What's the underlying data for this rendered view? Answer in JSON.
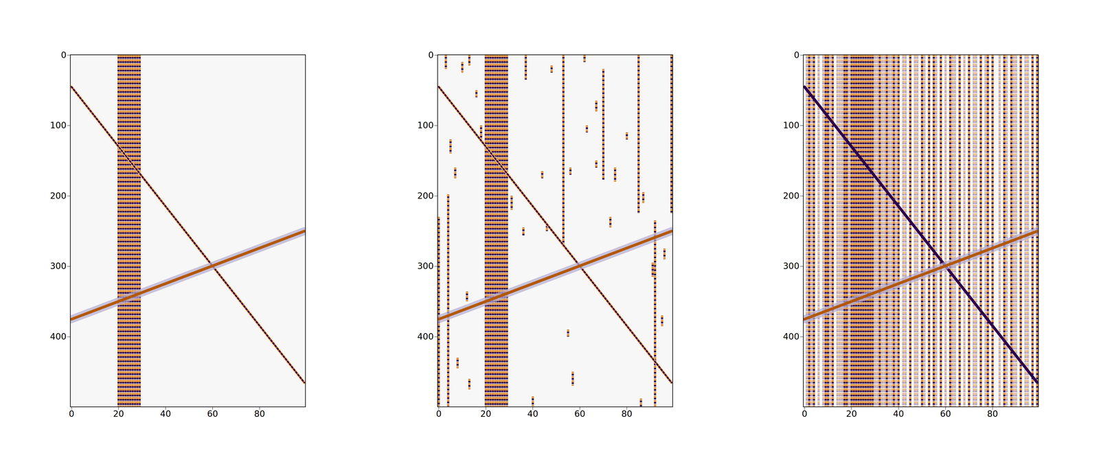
{
  "chart_data": [
    {
      "type": "seismic",
      "xlim": [
        -0.5,
        99.5
      ],
      "ylim": [
        -0.5,
        499.5
      ],
      "xticks": [
        0,
        20,
        40,
        60,
        80
      ],
      "yticks": [
        0,
        100,
        200,
        300,
        400
      ],
      "colors": [
        "#b35806",
        "#2d004b",
        "#fdb863"
      ],
      "events": [
        {
          "x": [
            0,
            99
          ],
          "y": [
            45,
            465
          ],
          "color": "#fdb863"
        },
        {
          "x": [
            0,
            99
          ],
          "y": [
            375,
            250
          ],
          "color": "#b35806"
        }
      ],
      "traces": [
        {
          "x": 20,
          "y0": 0,
          "y1": 499
        },
        {
          "x": 21,
          "y0": 0,
          "y1": 499
        },
        {
          "x": 22,
          "y0": 0,
          "y1": 499
        },
        {
          "x": 23,
          "y0": 0,
          "y1": 499
        },
        {
          "x": 24,
          "y0": 0,
          "y1": 499
        },
        {
          "x": 25,
          "y0": 0,
          "y1": 499
        },
        {
          "x": 26,
          "y0": 0,
          "y1": 499
        },
        {
          "x": 27,
          "y0": 0,
          "y1": 499
        },
        {
          "x": 28,
          "y0": 0,
          "y1": 499
        },
        {
          "x": 29,
          "y0": 0,
          "y1": 499
        }
      ],
      "faint_traces": []
    },
    {
      "type": "seismic",
      "xlim": [
        -0.5,
        99.5
      ],
      "ylim": [
        -0.5,
        499.5
      ],
      "xticks": [
        0,
        20,
        40,
        60,
        80
      ],
      "yticks": [
        0,
        100,
        200,
        300,
        400
      ],
      "colors": [
        "#b35806",
        "#2d004b",
        "#fdb863"
      ],
      "events": [
        {
          "x": [
            0,
            99
          ],
          "y": [
            45,
            465
          ],
          "color": "#fdb863"
        },
        {
          "x": [
            0,
            99
          ],
          "y": [
            375,
            250
          ],
          "color": "#b35806"
        }
      ],
      "traces": [
        {
          "x": 20,
          "y0": 0,
          "y1": 499
        },
        {
          "x": 21,
          "y0": 0,
          "y1": 499
        },
        {
          "x": 22,
          "y0": 0,
          "y1": 499
        },
        {
          "x": 23,
          "y0": 0,
          "y1": 499
        },
        {
          "x": 24,
          "y0": 0,
          "y1": 499
        },
        {
          "x": 25,
          "y0": 0,
          "y1": 499
        },
        {
          "x": 26,
          "y0": 0,
          "y1": 499
        },
        {
          "x": 27,
          "y0": 0,
          "y1": 499
        },
        {
          "x": 28,
          "y0": 0,
          "y1": 499
        },
        {
          "x": 29,
          "y0": 0,
          "y1": 499
        },
        {
          "x": 0,
          "y0": 230,
          "y1": 499
        },
        {
          "x": 4,
          "y0": 198,
          "y1": 499
        },
        {
          "x": 3,
          "y0": 0,
          "y1": 20
        },
        {
          "x": 5,
          "y0": 120,
          "y1": 140
        },
        {
          "x": 7,
          "y0": 160,
          "y1": 175
        },
        {
          "x": 10,
          "y0": 10,
          "y1": 25
        },
        {
          "x": 13,
          "y0": 0,
          "y1": 15
        },
        {
          "x": 16,
          "y0": 50,
          "y1": 60
        },
        {
          "x": 18,
          "y0": 100,
          "y1": 120
        },
        {
          "x": 12,
          "y0": 336,
          "y1": 350
        },
        {
          "x": 8,
          "y0": 430,
          "y1": 445
        },
        {
          "x": 13,
          "y0": 460,
          "y1": 475
        },
        {
          "x": 31,
          "y0": 200,
          "y1": 220
        },
        {
          "x": 36,
          "y0": 245,
          "y1": 257
        },
        {
          "x": 37,
          "y0": 0,
          "y1": 35
        },
        {
          "x": 40,
          "y0": 485,
          "y1": 499
        },
        {
          "x": 44,
          "y0": 165,
          "y1": 175
        },
        {
          "x": 46,
          "y0": 240,
          "y1": 250
        },
        {
          "x": 48,
          "y0": 15,
          "y1": 25
        },
        {
          "x": 53,
          "y0": 0,
          "y1": 272
        },
        {
          "x": 56,
          "y0": 160,
          "y1": 170
        },
        {
          "x": 55,
          "y0": 390,
          "y1": 400
        },
        {
          "x": 57,
          "y0": 450,
          "y1": 470
        },
        {
          "x": 62,
          "y0": 0,
          "y1": 10
        },
        {
          "x": 63,
          "y0": 100,
          "y1": 110
        },
        {
          "x": 67,
          "y0": 65,
          "y1": 80
        },
        {
          "x": 67,
          "y0": 150,
          "y1": 160
        },
        {
          "x": 70,
          "y0": 20,
          "y1": 177
        },
        {
          "x": 73,
          "y0": 230,
          "y1": 245
        },
        {
          "x": 75,
          "y0": 160,
          "y1": 180
        },
        {
          "x": 80,
          "y0": 110,
          "y1": 120
        },
        {
          "x": 85,
          "y0": 0,
          "y1": 225
        },
        {
          "x": 87,
          "y0": 195,
          "y1": 210
        },
        {
          "x": 91,
          "y0": 295,
          "y1": 315
        },
        {
          "x": 92,
          "y0": 235,
          "y1": 499
        },
        {
          "x": 95,
          "y0": 370,
          "y1": 385
        },
        {
          "x": 96,
          "y0": 275,
          "y1": 290
        },
        {
          "x": 99,
          "y0": 0,
          "y1": 225
        },
        {
          "x": 86,
          "y0": 488,
          "y1": 499
        }
      ],
      "faint_traces": []
    },
    {
      "type": "seismic",
      "xlim": [
        -0.5,
        99.5
      ],
      "ylim": [
        -0.5,
        499.5
      ],
      "xticks": [
        0,
        20,
        40,
        60,
        80
      ],
      "yticks": [
        0,
        100,
        200,
        300,
        400
      ],
      "colors": [
        "#b35806",
        "#2d004b",
        "#fdb863"
      ],
      "events": [
        {
          "x": [
            0,
            99
          ],
          "y": [
            45,
            465
          ],
          "color": "#2d004b"
        },
        {
          "x": [
            0,
            99
          ],
          "y": [
            375,
            250
          ],
          "color": "#b35806"
        }
      ],
      "traces": [
        {
          "x": 20,
          "y0": 0,
          "y1": 499
        },
        {
          "x": 21,
          "y0": 0,
          "y1": 499
        },
        {
          "x": 22,
          "y0": 0,
          "y1": 499
        },
        {
          "x": 23,
          "y0": 0,
          "y1": 499
        },
        {
          "x": 24,
          "y0": 0,
          "y1": 499
        },
        {
          "x": 25,
          "y0": 0,
          "y1": 499
        },
        {
          "x": 26,
          "y0": 0,
          "y1": 499
        },
        {
          "x": 27,
          "y0": 0,
          "y1": 499
        },
        {
          "x": 28,
          "y0": 0,
          "y1": 499
        },
        {
          "x": 29,
          "y0": 0,
          "y1": 499
        },
        {
          "x": 2,
          "y0": 0,
          "y1": 499
        },
        {
          "x": 4,
          "y0": 0,
          "y1": 499
        },
        {
          "x": 9,
          "y0": 0,
          "y1": 499
        },
        {
          "x": 10,
          "y0": 0,
          "y1": 499
        },
        {
          "x": 12,
          "y0": 0,
          "y1": 499
        },
        {
          "x": 17,
          "y0": 0,
          "y1": 499
        },
        {
          "x": 18,
          "y0": 0,
          "y1": 499
        },
        {
          "x": 32,
          "y0": 0,
          "y1": 499
        },
        {
          "x": 35,
          "y0": 0,
          "y1": 499
        },
        {
          "x": 38,
          "y0": 0,
          "y1": 499
        },
        {
          "x": 40,
          "y0": 0,
          "y1": 499
        },
        {
          "x": 45,
          "y0": 0,
          "y1": 499
        },
        {
          "x": 50,
          "y0": 0,
          "y1": 499
        },
        {
          "x": 53,
          "y0": 0,
          "y1": 499
        },
        {
          "x": 55,
          "y0": 0,
          "y1": 499
        },
        {
          "x": 58,
          "y0": 0,
          "y1": 499
        },
        {
          "x": 62,
          "y0": 0,
          "y1": 499
        },
        {
          "x": 66,
          "y0": 0,
          "y1": 499
        },
        {
          "x": 70,
          "y0": 0,
          "y1": 499
        },
        {
          "x": 75,
          "y0": 0,
          "y1": 499
        },
        {
          "x": 78,
          "y0": 0,
          "y1": 499
        },
        {
          "x": 80,
          "y0": 0,
          "y1": 499
        },
        {
          "x": 85,
          "y0": 0,
          "y1": 499
        },
        {
          "x": 88,
          "y0": 0,
          "y1": 499
        },
        {
          "x": 92,
          "y0": 0,
          "y1": 499
        },
        {
          "x": 97,
          "y0": 0,
          "y1": 499
        },
        {
          "x": 99,
          "y0": 0,
          "y1": 499
        }
      ],
      "faint_traces": [
        {
          "x": 1,
          "y0": 0,
          "y1": 499
        },
        {
          "x": 3,
          "y0": 0,
          "y1": 499
        },
        {
          "x": 6,
          "y0": 0,
          "y1": 499
        },
        {
          "x": 8,
          "y0": 0,
          "y1": 499
        },
        {
          "x": 11,
          "y0": 0,
          "y1": 499
        },
        {
          "x": 14,
          "y0": 0,
          "y1": 499
        },
        {
          "x": 15,
          "y0": 0,
          "y1": 499
        },
        {
          "x": 16,
          "y0": 0,
          "y1": 499
        },
        {
          "x": 19,
          "y0": 0,
          "y1": 499
        },
        {
          "x": 30,
          "y0": 0,
          "y1": 499
        },
        {
          "x": 31,
          "y0": 0,
          "y1": 499
        },
        {
          "x": 33,
          "y0": 0,
          "y1": 499
        },
        {
          "x": 34,
          "y0": 0,
          "y1": 499
        },
        {
          "x": 36,
          "y0": 0,
          "y1": 499
        },
        {
          "x": 37,
          "y0": 0,
          "y1": 499
        },
        {
          "x": 39,
          "y0": 0,
          "y1": 499
        },
        {
          "x": 42,
          "y0": 0,
          "y1": 499
        },
        {
          "x": 43,
          "y0": 0,
          "y1": 499
        },
        {
          "x": 47,
          "y0": 0,
          "y1": 499
        },
        {
          "x": 48,
          "y0": 0,
          "y1": 499
        },
        {
          "x": 51,
          "y0": 0,
          "y1": 499
        },
        {
          "x": 56,
          "y0": 0,
          "y1": 499
        },
        {
          "x": 60,
          "y0": 0,
          "y1": 499
        },
        {
          "x": 63,
          "y0": 0,
          "y1": 499
        },
        {
          "x": 64,
          "y0": 0,
          "y1": 499
        },
        {
          "x": 68,
          "y0": 0,
          "y1": 499
        },
        {
          "x": 72,
          "y0": 0,
          "y1": 499
        },
        {
          "x": 73,
          "y0": 0,
          "y1": 499
        },
        {
          "x": 77,
          "y0": 0,
          "y1": 499
        },
        {
          "x": 83,
          "y0": 0,
          "y1": 499
        },
        {
          "x": 86,
          "y0": 0,
          "y1": 499
        },
        {
          "x": 89,
          "y0": 0,
          "y1": 499
        },
        {
          "x": 90,
          "y0": 0,
          "y1": 499
        },
        {
          "x": 94,
          "y0": 0,
          "y1": 499
        },
        {
          "x": 95,
          "y0": 0,
          "y1": 499
        }
      ]
    }
  ]
}
